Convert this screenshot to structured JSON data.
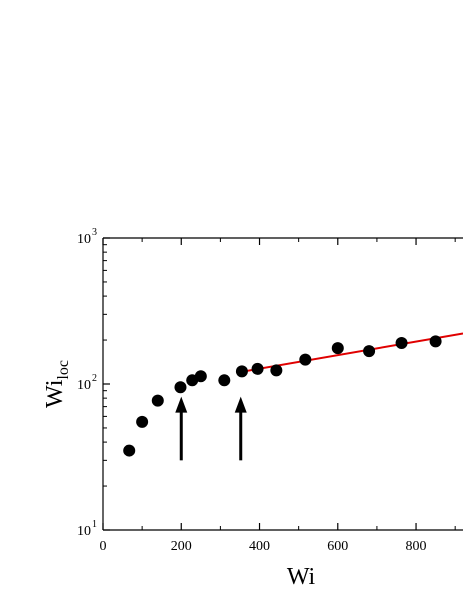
{
  "chart_data": {
    "type": "scatter",
    "title": "",
    "xlabel": "Wi",
    "ylabel": {
      "base": "Wi",
      "subscript": "loc"
    },
    "xlim": [
      0,
      920
    ],
    "ylim": [
      10,
      1000
    ],
    "yscale": "log",
    "grid": false,
    "x_ticks": [
      {
        "value": 0,
        "label": "0"
      },
      {
        "value": 200,
        "label": "200"
      },
      {
        "value": 400,
        "label": "400"
      },
      {
        "value": 600,
        "label": "600"
      },
      {
        "value": 800,
        "label": "800"
      }
    ],
    "y_ticks": [
      {
        "value": 10,
        "base": "10",
        "exp": "1"
      },
      {
        "value": 100,
        "base": "10",
        "exp": "2"
      },
      {
        "value": 1000,
        "base": "10",
        "exp": "3"
      }
    ],
    "series": [
      {
        "marker": "circle",
        "color": "#000000",
        "x": [
          67,
          100,
          140,
          198,
          228,
          250,
          310,
          355,
          395,
          443,
          517,
          600,
          680,
          763,
          850
        ],
        "y": [
          35,
          55,
          77,
          95,
          106,
          113,
          106,
          122,
          127,
          124,
          147,
          176,
          168,
          191,
          196
        ]
      }
    ],
    "fit_line": {
      "color": "#e00000",
      "x": [
        345,
        920
      ],
      "y": [
        120,
        222
      ]
    },
    "annotations": [
      {
        "type": "arrow",
        "x": 200,
        "y_from": 30,
        "y_to": 82
      },
      {
        "type": "arrow",
        "x": 352,
        "y_from": 30,
        "y_to": 82
      }
    ]
  }
}
